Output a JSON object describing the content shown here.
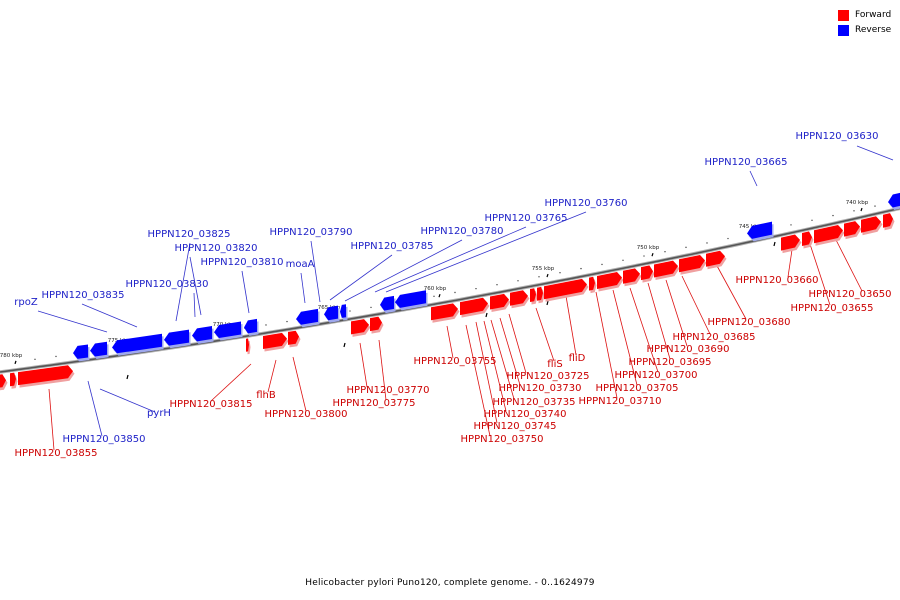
{
  "legend": {
    "forward_label": "Forward",
    "reverse_label": "Reverse",
    "forward_color": "#ff0000",
    "reverse_color": "#0000ff"
  },
  "caption": "Helicobacter pylori Puno120, complete genome. - 0..1624979",
  "axis": {
    "unit": "kbp",
    "ticks": [
      {
        "label": "740 kbp"
      },
      {
        "label": "745 kbp"
      },
      {
        "label": "750 kbp"
      },
      {
        "label": "755 kbp"
      },
      {
        "label": "760 kbp"
      },
      {
        "label": "765 kbp"
      },
      {
        "label": "770 kbp"
      },
      {
        "label": "775 kbp"
      },
      {
        "label": "780 kbp"
      }
    ]
  },
  "genes": [
    {
      "label": "HPPN120_03630",
      "strand": "reverse"
    },
    {
      "label": "HPPN120_03665",
      "strand": "reverse"
    },
    {
      "label": "HPPN120_03760",
      "strand": "reverse"
    },
    {
      "label": "HPPN120_03765",
      "strand": "reverse"
    },
    {
      "label": "HPPN120_03780",
      "strand": "reverse"
    },
    {
      "label": "HPPN120_03785",
      "strand": "reverse"
    },
    {
      "label": "HPPN120_03790",
      "strand": "reverse"
    },
    {
      "label": "moaA",
      "strand": "reverse"
    },
    {
      "label": "HPPN120_03810",
      "strand": "reverse"
    },
    {
      "label": "HPPN120_03820",
      "strand": "reverse"
    },
    {
      "label": "HPPN120_03825",
      "strand": "reverse"
    },
    {
      "label": "HPPN120_03830",
      "strand": "reverse"
    },
    {
      "label": "HPPN120_03835",
      "strand": "reverse"
    },
    {
      "label": "rpoZ",
      "strand": "reverse"
    },
    {
      "label": "pyrH",
      "strand": "reverse"
    },
    {
      "label": "HPPN120_03850",
      "strand": "reverse"
    },
    {
      "label": "HPPN120_03855",
      "strand": "forward"
    },
    {
      "label": "HPPN120_03815",
      "strand": "forward"
    },
    {
      "label": "flhB",
      "strand": "forward"
    },
    {
      "label": "HPPN120_03800",
      "strand": "forward"
    },
    {
      "label": "HPPN120_03770",
      "strand": "forward"
    },
    {
      "label": "HPPN120_03775",
      "strand": "forward"
    },
    {
      "label": "HPPN120_03755",
      "strand": "forward"
    },
    {
      "label": "HPPN120_03725",
      "strand": "forward"
    },
    {
      "label": "HPPN120_03730",
      "strand": "forward"
    },
    {
      "label": "HPPN120_03735",
      "strand": "forward"
    },
    {
      "label": "HPPN120_03740",
      "strand": "forward"
    },
    {
      "label": "HPPN120_03745",
      "strand": "forward"
    },
    {
      "label": "HPPN120_03750",
      "strand": "forward"
    },
    {
      "label": "fliS",
      "strand": "forward"
    },
    {
      "label": "fliD",
      "strand": "forward"
    },
    {
      "label": "HPPN120_03710",
      "strand": "forward"
    },
    {
      "label": "HPPN120_03705",
      "strand": "forward"
    },
    {
      "label": "HPPN120_03700",
      "strand": "forward"
    },
    {
      "label": "HPPN120_03695",
      "strand": "forward"
    },
    {
      "label": "HPPN120_03690",
      "strand": "forward"
    },
    {
      "label": "HPPN120_03685",
      "strand": "forward"
    },
    {
      "label": "HPPN120_03680",
      "strand": "forward"
    },
    {
      "label": "HPPN120_03660",
      "strand": "forward"
    },
    {
      "label": "HPPN120_03655",
      "strand": "forward"
    },
    {
      "label": "HPPN120_03650",
      "strand": "forward"
    }
  ]
}
